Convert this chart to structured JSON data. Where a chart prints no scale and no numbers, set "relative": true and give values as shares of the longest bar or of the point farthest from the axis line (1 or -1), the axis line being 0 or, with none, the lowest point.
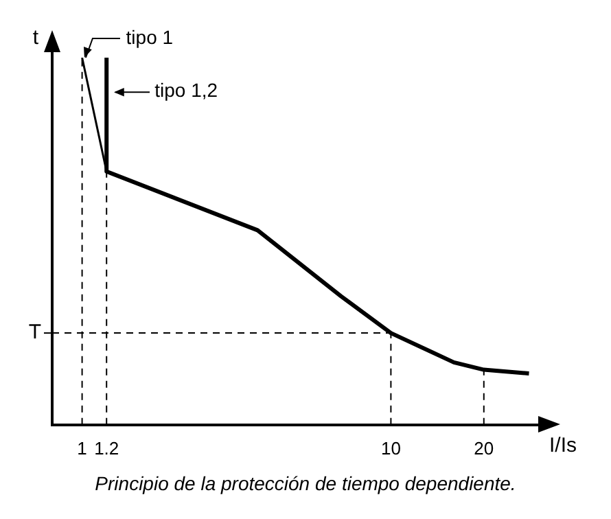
{
  "chart_data": {
    "type": "line",
    "xlabel": "I/Is",
    "ylabel": "t",
    "relative": true,
    "log": "x",
    "xlim": [
      0.8,
      30
    ],
    "xticks": [
      1,
      1.2,
      10,
      20
    ],
    "grid": false,
    "legend": "top left",
    "marker": "none",
    "series": [
      {
        "name": "tipo 1",
        "color": "#000000",
        "x": [
          1,
          1.2
        ],
        "values": [
          1,
          0.69
        ]
      },
      {
        "name": "tipo 1,2",
        "color": "#000000",
        "x": [
          1.2,
          1.2,
          3.7,
          6.9,
          10,
          16,
          20,
          28
        ],
        "values": [
          1,
          0.69,
          0.53,
          0.35,
          0.25,
          0.17,
          0.15,
          0.14
        ]
      }
    ],
    "ref_lines": [
      {
        "axis": "y",
        "value": 0.25,
        "label": "T",
        "line_style": "dashed"
      },
      {
        "axis": "x",
        "value": 1,
        "label": null,
        "line_style": "dashed"
      },
      {
        "axis": "x",
        "value": 1.2,
        "label": null,
        "line_style": "dashed"
      },
      {
        "axis": "x",
        "value": 10,
        "label": null,
        "line_style": "dashed"
      },
      {
        "axis": "x",
        "value": 20,
        "label": null,
        "line_style": "dashed"
      }
    ],
    "annotations": [
      "Principio de la protección de tiempo dependiente."
    ]
  }
}
